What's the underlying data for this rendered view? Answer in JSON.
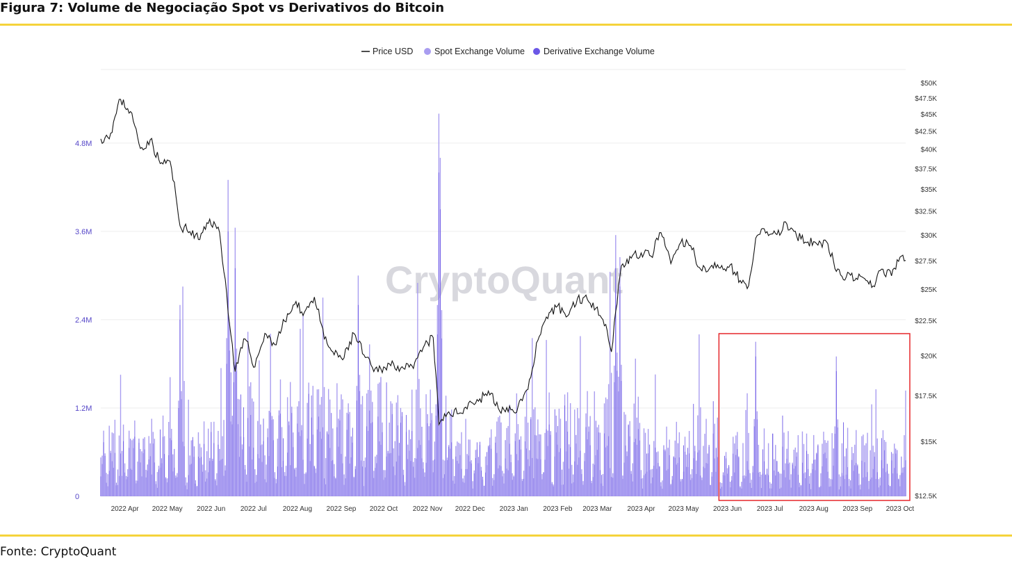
{
  "header": {
    "title": "Figura 7: Volume de Negociação Spot vs Derivativos do Bitcoin"
  },
  "footer": {
    "source": "Fonte: CryptoQuant"
  },
  "colors": {
    "accent_rule": "#f5d33b",
    "spot": "#a99df0",
    "derivative": "#6b57e6",
    "price": "#111111",
    "highlight_box": "#e5262a",
    "left_axis_text": "#5546c8"
  },
  "chart_data": {
    "type": "bar",
    "watermark": "CryptoQuant",
    "legend": {
      "placement": "top-center",
      "items": [
        {
          "label": "Price USD",
          "marker": "line"
        },
        {
          "label": "Spot Exchange Volume",
          "marker": "dot"
        },
        {
          "label": "Derivative Exchange Volume",
          "marker": "dot"
        }
      ]
    },
    "x_axis": {
      "ticks": [
        "2022 Apr",
        "2022 May",
        "2022 Jun",
        "2022 Jul",
        "2022 Aug",
        "2022 Sep",
        "2022 Oct",
        "2022 Nov",
        "2022 Dec",
        "2023 Jan",
        "2023 Feb",
        "2023 Mar",
        "2023 Apr",
        "2023 May",
        "2023 Jun",
        "2023 Jul",
        "2023 Aug",
        "2023 Sep",
        "2023 Oct"
      ],
      "range": [
        "2022-03-15",
        "2023-10-05"
      ]
    },
    "y_left": {
      "ticks": [
        "0",
        "1.2M",
        "2.4M",
        "3.6M",
        "4.8M"
      ],
      "ylim": [
        0,
        5800000
      ]
    },
    "y_right": {
      "ticks": [
        "$12.5K",
        "$15K",
        "$17.5K",
        "$20K",
        "$22.5K",
        "$25K",
        "$27.5K",
        "$30K",
        "$32.5K",
        "$35K",
        "$37.5K",
        "$40K",
        "$42.5K",
        "$45K",
        "$47.5K",
        "$50K"
      ],
      "scale": "log",
      "ylim": [
        12500,
        50000
      ]
    },
    "grid": true,
    "price_usd": [
      [
        "2022-03-15",
        41500
      ],
      [
        "2022-03-22",
        42300
      ],
      [
        "2022-03-29",
        47400
      ],
      [
        "2022-04-05",
        45500
      ],
      [
        "2022-04-12",
        40200
      ],
      [
        "2022-04-19",
        41400
      ],
      [
        "2022-04-26",
        38200
      ],
      [
        "2022-05-03",
        38500
      ],
      [
        "2022-05-10",
        31000
      ],
      [
        "2022-05-17",
        30400
      ],
      [
        "2022-05-24",
        29600
      ],
      [
        "2022-05-31",
        31700
      ],
      [
        "2022-06-07",
        30300
      ],
      [
        "2022-06-14",
        22300
      ],
      [
        "2022-06-18",
        19000
      ],
      [
        "2022-06-25",
        21200
      ],
      [
        "2022-07-02",
        19300
      ],
      [
        "2022-07-09",
        21600
      ],
      [
        "2022-07-16",
        20800
      ],
      [
        "2022-07-23",
        22500
      ],
      [
        "2022-07-30",
        23800
      ],
      [
        "2022-08-06",
        23200
      ],
      [
        "2022-08-13",
        24400
      ],
      [
        "2022-08-20",
        21200
      ],
      [
        "2022-08-27",
        20100
      ],
      [
        "2022-09-03",
        19900
      ],
      [
        "2022-09-10",
        21600
      ],
      [
        "2022-09-17",
        20100
      ],
      [
        "2022-09-24",
        19000
      ],
      [
        "2022-10-01",
        19300
      ],
      [
        "2022-10-08",
        19500
      ],
      [
        "2022-10-15",
        19200
      ],
      [
        "2022-10-22",
        19200
      ],
      [
        "2022-10-29",
        20600
      ],
      [
        "2022-11-05",
        21300
      ],
      [
        "2022-11-09",
        15900
      ],
      [
        "2022-11-16",
        16600
      ],
      [
        "2022-11-23",
        16500
      ],
      [
        "2022-11-30",
        17100
      ],
      [
        "2022-12-07",
        17200
      ],
      [
        "2022-12-14",
        17800
      ],
      [
        "2022-12-21",
        16800
      ],
      [
        "2022-12-28",
        16600
      ],
      [
        "2023-01-04",
        16900
      ],
      [
        "2023-01-11",
        17900
      ],
      [
        "2023-01-18",
        21100
      ],
      [
        "2023-01-25",
        22700
      ],
      [
        "2023-02-01",
        23700
      ],
      [
        "2023-02-08",
        22900
      ],
      [
        "2023-02-15",
        24300
      ],
      [
        "2023-02-22",
        24200
      ],
      [
        "2023-03-01",
        23600
      ],
      [
        "2023-03-08",
        21800
      ],
      [
        "2023-03-11",
        20300
      ],
      [
        "2023-03-18",
        27100
      ],
      [
        "2023-03-25",
        27800
      ],
      [
        "2023-04-01",
        28300
      ],
      [
        "2023-04-08",
        28000
      ],
      [
        "2023-04-15",
        30300
      ],
      [
        "2023-04-22",
        27300
      ],
      [
        "2023-04-29",
        29300
      ],
      [
        "2023-05-06",
        29000
      ],
      [
        "2023-05-13",
        26800
      ],
      [
        "2023-05-20",
        27000
      ],
      [
        "2023-05-27",
        26900
      ],
      [
        "2023-06-03",
        27200
      ],
      [
        "2023-06-10",
        25800
      ],
      [
        "2023-06-15",
        25100
      ],
      [
        "2023-06-22",
        30000
      ],
      [
        "2023-06-29",
        30400
      ],
      [
        "2023-07-06",
        30100
      ],
      [
        "2023-07-13",
        31200
      ],
      [
        "2023-07-20",
        29900
      ],
      [
        "2023-07-27",
        29300
      ],
      [
        "2023-08-03",
        29200
      ],
      [
        "2023-08-10",
        29400
      ],
      [
        "2023-08-17",
        26600
      ],
      [
        "2023-08-24",
        26100
      ],
      [
        "2023-08-31",
        26000
      ],
      [
        "2023-09-07",
        25800
      ],
      [
        "2023-09-11",
        25200
      ],
      [
        "2023-09-18",
        26800
      ],
      [
        "2023-09-25",
        26200
      ],
      [
        "2023-10-01",
        27900
      ],
      [
        "2023-10-05",
        27600
      ]
    ],
    "spot_volume_daily": {
      "start": "2022-03-15",
      "end": "2023-10-05",
      "note_typical_range": [
        300000,
        1000000
      ],
      "peaks": [
        [
          "2022-05-10",
          2600000
        ],
        [
          "2022-05-12",
          2850000
        ],
        [
          "2022-06-13",
          4300000
        ],
        [
          "2022-06-18",
          3650000
        ],
        [
          "2022-08-19",
          2700000
        ],
        [
          "2022-09-13",
          3000000
        ],
        [
          "2022-10-25",
          2900000
        ],
        [
          "2022-11-09",
          5200000
        ],
        [
          "2022-11-10",
          4600000
        ],
        [
          "2023-01-14",
          2150000
        ],
        [
          "2023-03-10",
          3050000
        ],
        [
          "2023-03-14",
          3550000
        ],
        [
          "2023-03-17",
          3250000
        ],
        [
          "2023-05-12",
          2200000
        ],
        [
          "2023-06-15",
          1400000
        ],
        [
          "2023-06-21",
          2100000
        ],
        [
          "2023-08-17",
          1900000
        ],
        [
          "2023-09-11",
          1250000
        ]
      ]
    },
    "derivative_volume_daily": {
      "start": "2022-03-15",
      "end": "2023-10-05",
      "note_typical_range": [
        300000,
        900000
      ],
      "peaks": [
        [
          "2022-05-10",
          2400000
        ],
        [
          "2022-06-13",
          3600000
        ],
        [
          "2022-06-18",
          3100000
        ],
        [
          "2022-09-13",
          2600000
        ],
        [
          "2022-11-09",
          4400000
        ],
        [
          "2022-11-10",
          3900000
        ],
        [
          "2023-03-14",
          3100000
        ],
        [
          "2023-03-17",
          2850000
        ],
        [
          "2023-06-21",
          1900000
        ],
        [
          "2023-08-17",
          1700000
        ]
      ]
    },
    "highlight_region": {
      "from": "2023-05-26",
      "to": "2023-10-05",
      "label": ""
    }
  }
}
